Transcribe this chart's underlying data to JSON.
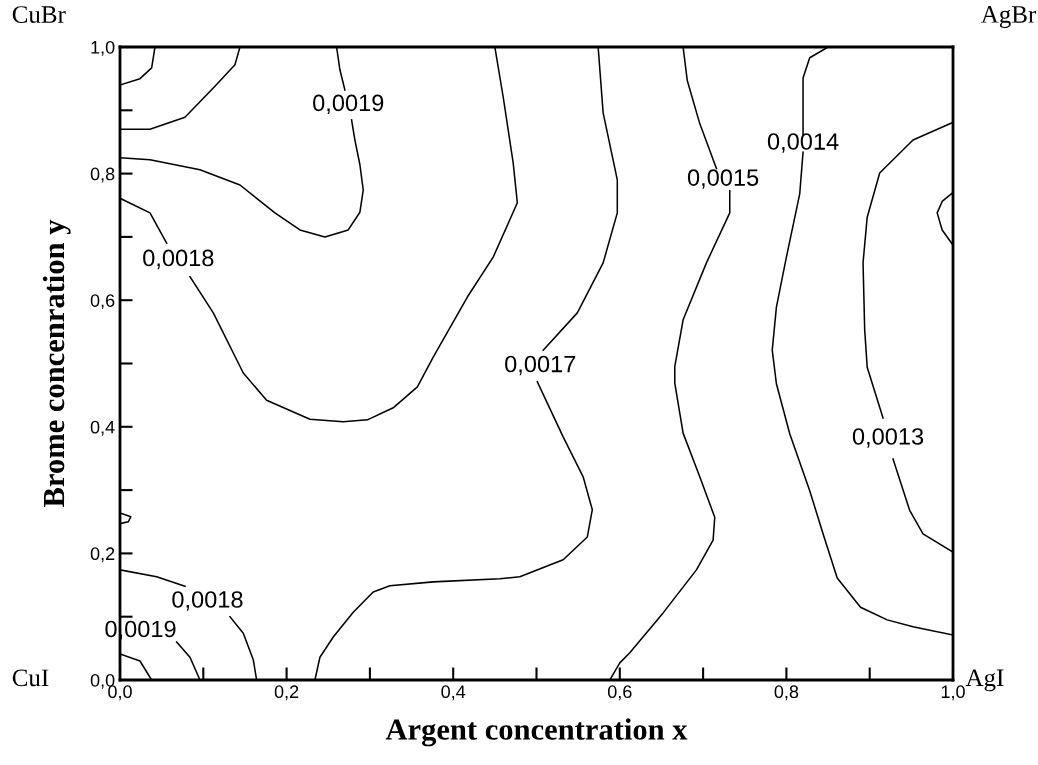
{
  "chart_data": {
    "type": "line",
    "xlabel": "Argent concentration x",
    "ylabel": "Brome concenration y",
    "xlim": [
      0,
      1
    ],
    "ylim": [
      0,
      1
    ],
    "xticks": [
      {
        "value": 0,
        "label": "0,0"
      },
      {
        "value": 0.1,
        "label": null
      },
      {
        "value": 0.2,
        "label": "0,2"
      },
      {
        "value": 0.3,
        "label": null
      },
      {
        "value": 0.4,
        "label": "0,4"
      },
      {
        "value": 0.5,
        "label": null
      },
      {
        "value": 0.6,
        "label": "0,6"
      },
      {
        "value": 0.7,
        "label": null
      },
      {
        "value": 0.8,
        "label": "0,8"
      },
      {
        "value": 0.9,
        "label": null
      },
      {
        "value": 1,
        "label": "1,0"
      }
    ],
    "yticks": [
      {
        "value": 0,
        "label": "0,0"
      },
      {
        "value": 0.1,
        "label": null
      },
      {
        "value": 0.2,
        "label": "0,2"
      },
      {
        "value": 0.3,
        "label": null
      },
      {
        "value": 0.4,
        "label": "0,4"
      },
      {
        "value": 0.5,
        "label": null
      },
      {
        "value": 0.6,
        "label": "0,6"
      },
      {
        "value": 0.7,
        "label": null
      },
      {
        "value": 0.8,
        "label": "0,8"
      },
      {
        "value": 0.9,
        "label": null
      },
      {
        "value": 1,
        "label": "1,0"
      }
    ],
    "series": [
      {
        "color": "#000000",
        "x": [
          0,
          0.024,
          0.038,
          0.042
        ],
        "values": [
          0.94,
          0.95,
          0.967,
          1.0
        ]
      },
      {
        "color": "#000000",
        "x": [
          0,
          0.036,
          0.078,
          0.114,
          0.138,
          0.144
        ],
        "values": [
          0.87,
          0.87,
          0.889,
          0.938,
          0.972,
          1.0
        ]
      },
      {
        "name": "0,0019",
        "color": "#000000",
        "x": [
          0,
          0.036,
          0.096,
          0.144,
          0.186,
          0.216,
          0.246,
          0.274,
          0.288,
          0.292,
          0.288,
          0.282,
          0.278,
          null,
          0.27,
          0.264,
          0.26
        ],
        "values": [
          0.825,
          0.822,
          0.806,
          0.782,
          0.738,
          0.711,
          0.7,
          0.711,
          0.739,
          0.774,
          0.814,
          0.853,
          0.885,
          null,
          0.932,
          0.964,
          1.0
        ]
      },
      {
        "name": "0,0018",
        "color": "#000000",
        "x": [
          0,
          0.036,
          0.056,
          null,
          0.084,
          0.112,
          0.148,
          0.176,
          0.228,
          0.268,
          0.297,
          0.328,
          0.357,
          0.376,
          0.417,
          0.448,
          0.477,
          0.472,
          0.46,
          0.45
        ],
        "values": [
          0.761,
          0.738,
          0.69,
          null,
          0.637,
          0.58,
          0.485,
          0.442,
          0.412,
          0.408,
          0.411,
          0.43,
          0.463,
          0.51,
          0.605,
          0.668,
          0.754,
          0.817,
          0.921,
          1.0
        ]
      },
      {
        "name": "0,0017",
        "color": "#000000",
        "x": [
          0.574,
          0.58,
          0.597,
          0.597,
          0.58,
          0.549,
          0.508,
          null,
          0.501,
          0.532,
          0.556,
          0.567,
          0.561,
          0.532,
          0.48,
          0.456,
          0.376,
          0.324,
          0.304,
          0.28,
          0.256,
          0.24,
          0.234
        ],
        "values": [
          1.0,
          0.896,
          0.79,
          0.738,
          0.659,
          0.58,
          0.521,
          null,
          0.471,
          0.384,
          0.321,
          0.269,
          0.226,
          0.19,
          0.163,
          0.16,
          0.155,
          0.149,
          0.139,
          0.107,
          0.068,
          0.036,
          0
        ]
      },
      {
        "name": "0,0015",
        "color": "#000000",
        "x": [
          0.676,
          0.681,
          0.696,
          0.716,
          null,
          0.732,
          0.732,
          0.704,
          0.676,
          0.666,
          0.666,
          0.676,
          0.696,
          0.714,
          0.712,
          0.692,
          0.652,
          0.612,
          0.6,
          0.588
        ],
        "values": [
          1.0,
          0.947,
          0.879,
          0.808,
          null,
          0.773,
          0.738,
          0.659,
          0.569,
          0.495,
          0.469,
          0.39,
          0.321,
          0.257,
          0.221,
          0.174,
          0.106,
          0.043,
          0.027,
          0
        ]
      },
      {
        "name": "0,0014",
        "color": "#000000",
        "x": [
          0.85,
          0.828,
          0.82,
          0.82,
          null,
          0.82,
          0.816,
          0.8,
          0.788,
          0.783,
          0.788,
          0.804,
          0.828,
          0.844,
          0.861,
          0.889,
          0.921,
          0.952,
          1.0
        ],
        "values": [
          1.0,
          0.983,
          0.951,
          0.861,
          null,
          0.834,
          0.768,
          0.668,
          0.589,
          0.521,
          0.468,
          0.389,
          0.299,
          0.231,
          0.161,
          0.115,
          0.095,
          0.084,
          0.071
        ]
      },
      {
        "name": "0,0013",
        "color": "#000000",
        "x": [
          1.0,
          0.952,
          0.912,
          0.897,
          0.892,
          0.894,
          0.897,
          0.916,
          null,
          0.928,
          0.948,
          0.964,
          1.0
        ],
        "values": [
          0.881,
          0.853,
          0.801,
          0.731,
          0.659,
          0.553,
          0.494,
          0.414,
          null,
          0.349,
          0.268,
          0.231,
          0.202
        ]
      },
      {
        "color": "#000000",
        "x": [
          1.0,
          0.987,
          0.981,
          0.987,
          1.0
        ],
        "values": [
          0.77,
          0.756,
          0.738,
          0.711,
          0.687
        ]
      },
      {
        "color": "#000000",
        "x": [
          0,
          0.013,
          0.01,
          0
        ],
        "values": [
          0.264,
          0.258,
          0.25,
          0.247
        ]
      },
      {
        "name": "0,0018",
        "color": "#000000",
        "x": [
          0,
          0.044,
          0.078,
          null,
          0.132,
          0.148,
          0.16,
          0.164
        ],
        "values": [
          0.174,
          0.163,
          0.148,
          null,
          0.1,
          0.074,
          0.032,
          0
        ]
      },
      {
        "color": "#000000",
        "x": [
          0,
          0.024,
          0.038
        ],
        "values": [
          0.041,
          0.03,
          0
        ]
      },
      {
        "name": "0,0019",
        "color": "#000000",
        "x": [
          0.068,
          0.084,
          0.096
        ],
        "values": [
          0.06,
          0.036,
          0
        ]
      }
    ],
    "annotations": [
      "CuBr",
      "AgBr",
      "CuI",
      "AgI"
    ]
  }
}
